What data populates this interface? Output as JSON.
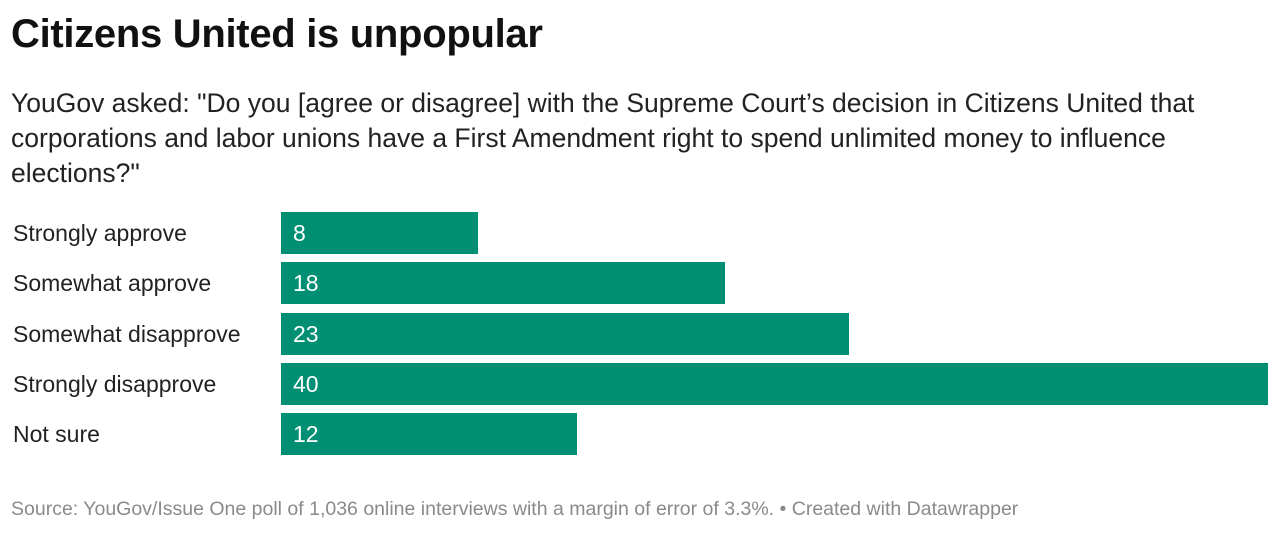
{
  "chart_data": {
    "type": "bar",
    "orientation": "horizontal",
    "title": "Citizens United is unpopular",
    "subtitle": "YouGov asked: \"Do you [agree or disagree] with the Supreme Court’s decision in Citizens United that corporations and labor unions have a First Amendment right to spend unlimited money to influence elections?\"",
    "categories": [
      "Strongly approve",
      "Somewhat approve",
      "Somewhat disapprove",
      "Strongly disapprove",
      "Not sure"
    ],
    "values": [
      8,
      18,
      23,
      40,
      12
    ],
    "xlim": [
      0,
      40
    ],
    "grid": false,
    "bar_color": "#008f72",
    "source": "Source: YouGov/Issue One poll of 1,036 online interviews with a margin of error of 3.3%. • Created with Datawrapper"
  }
}
